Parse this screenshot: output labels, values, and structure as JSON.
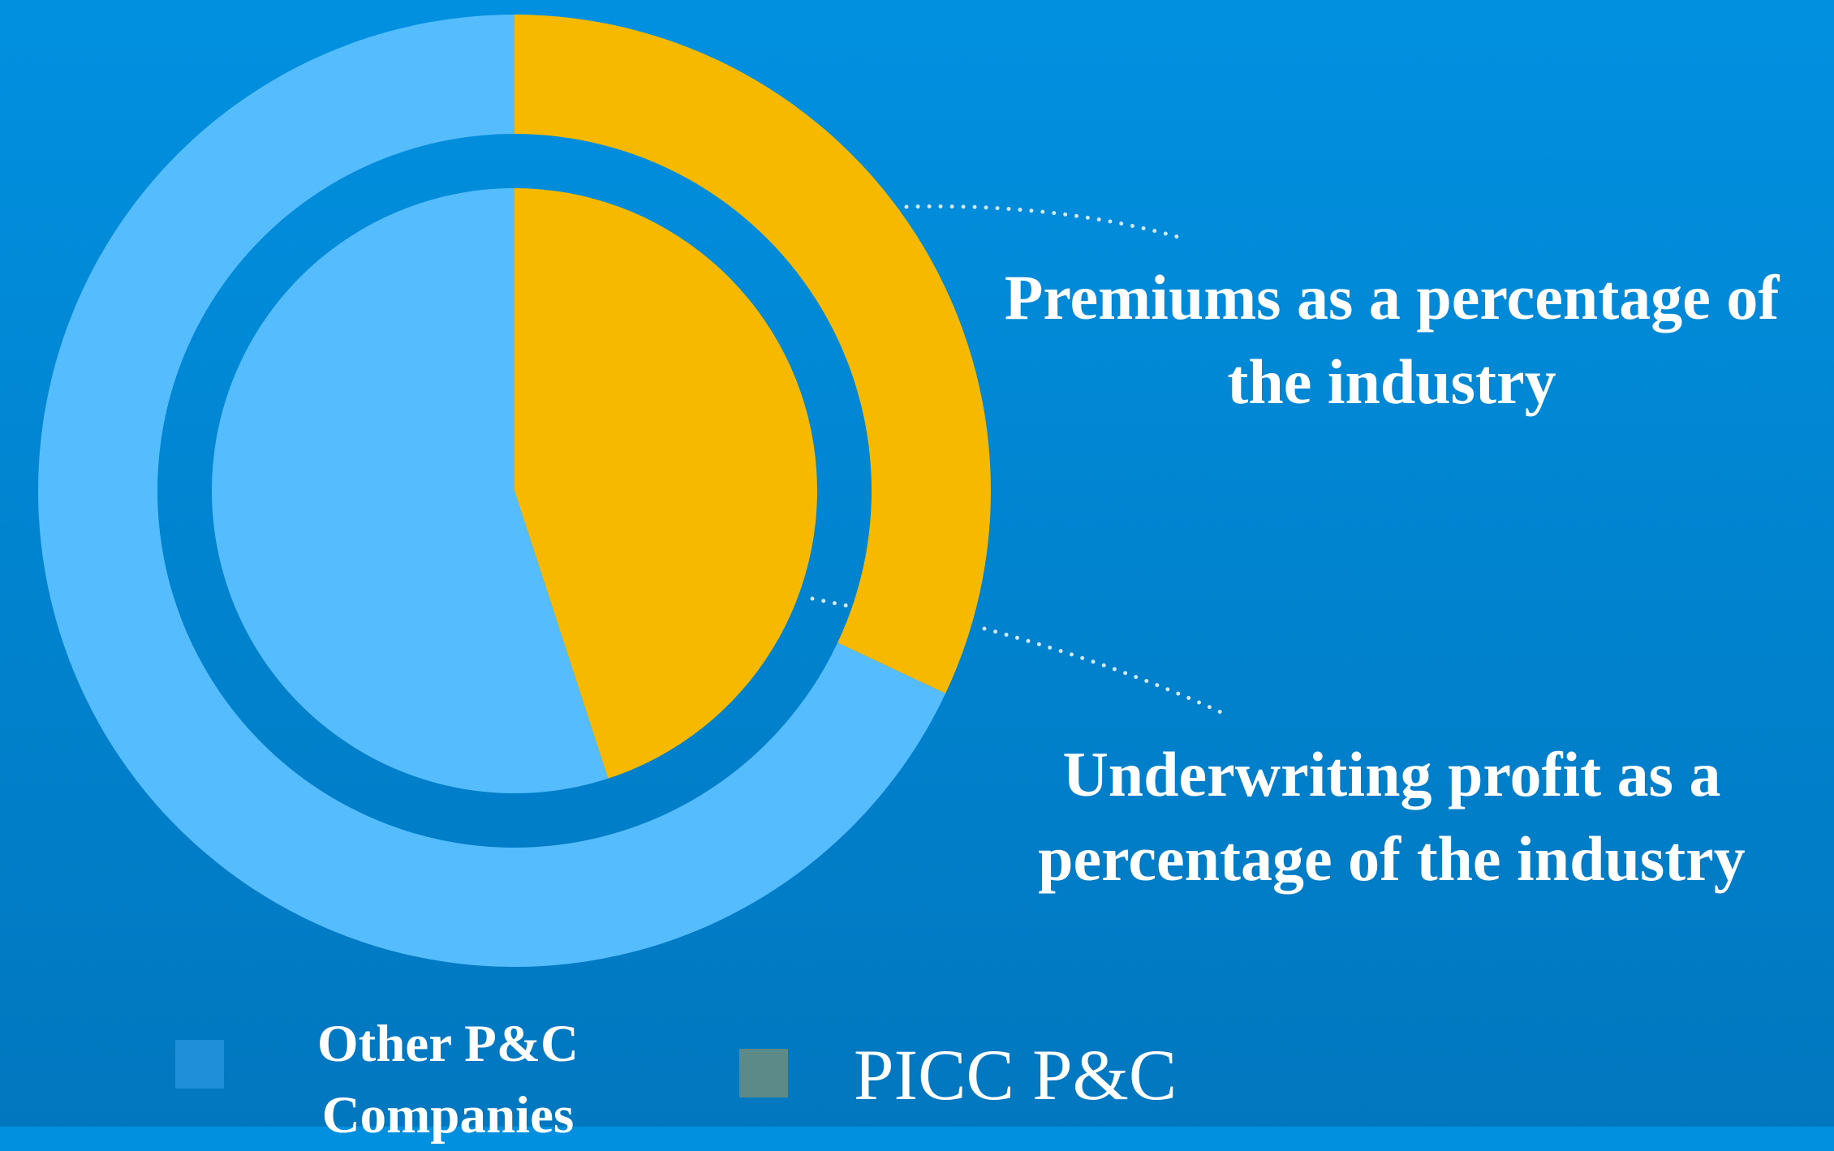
{
  "chart_data": {
    "type": "donut",
    "categories": [
      "Other P&C Companies",
      "PICC P&C"
    ],
    "colors": [
      "#55bdfd",
      "#f7b900"
    ],
    "legend_colors": [
      "#1e8fd8",
      "#5b8a89"
    ],
    "series": [
      {
        "name": "Premiums as a percentage of the industry",
        "values": [
          68,
          32
        ]
      },
      {
        "name": "Underwriting profit as a percentage of the industry",
        "values": [
          55,
          45
        ]
      }
    ]
  }
}
